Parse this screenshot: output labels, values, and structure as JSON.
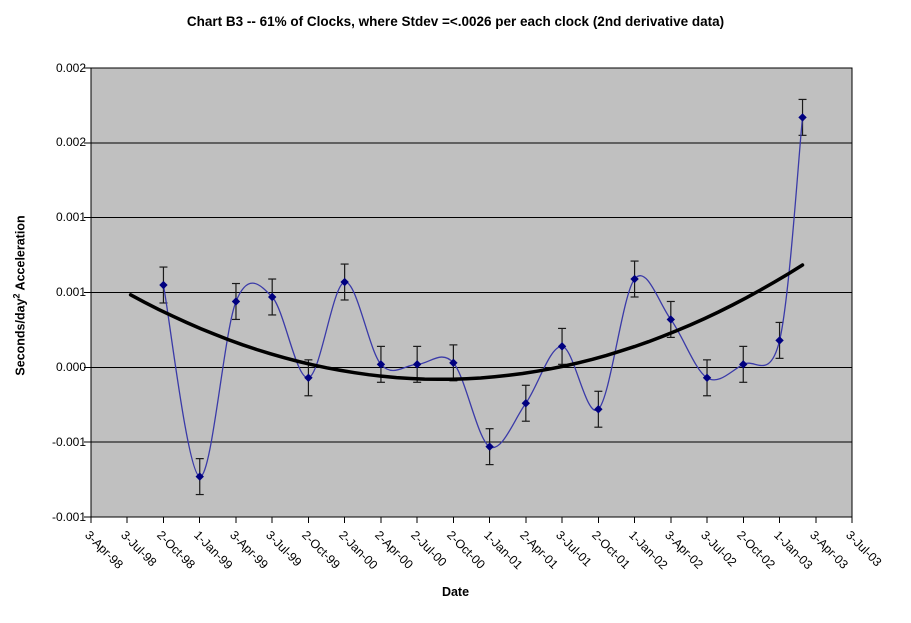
{
  "chart_data": {
    "type": "line",
    "title": "Chart B3 -- 61% of Clocks, where Stdev =<.0026 per each clock (2nd derivative data)",
    "xlabel": "Date",
    "ylabel": "Seconds/day2 Acceleration",
    "ylabel_parts": {
      "main": "Seconds/day",
      "sup": "2",
      "rest": " Acceleration"
    },
    "plot_bg_color": "#c0c0c0",
    "grid": true,
    "legend_position": "none",
    "y_axis": {
      "min": -0.001,
      "max": 0.002,
      "tick_labels": [
        "0.002",
        "0.002",
        "0.001",
        "0.001",
        "0.000",
        "-0.001",
        "-0.001"
      ],
      "tick_values": [
        0.002,
        0.0015,
        0.001,
        0.0005,
        0.0,
        -0.0005,
        -0.001
      ]
    },
    "x_axis": {
      "tick_labels": [
        "3-Apr-98",
        "3-Jul-98",
        "2-Oct-98",
        "1-Jan-99",
        "3-Apr-99",
        "3-Jul-99",
        "2-Oct-99",
        "2-Jan-00",
        "2-Apr-00",
        "2-Jul-00",
        "2-Oct-00",
        "1-Jan-01",
        "2-Apr-01",
        "3-Jul-01",
        "2-Oct-01",
        "1-Jan-02",
        "3-Apr-02",
        "3-Jul-02",
        "2-Oct-02",
        "1-Jan-03",
        "3-Apr-03",
        "3-Jul-03"
      ],
      "label_rotation_deg": 45
    },
    "series": [
      {
        "name": "2nd derivative data",
        "style": "smoothed-line",
        "line_color": "#3a3aa8",
        "marker": "diamond",
        "marker_color": "#000080",
        "error_bar_color": "#1a1a1a",
        "points": [
          {
            "date": "2-Oct-98",
            "x_frac": 0.0952,
            "y": 0.00055,
            "err": 0.00012
          },
          {
            "date": "1-Jan-99",
            "x_frac": 0.1429,
            "y": -0.00073,
            "err": 0.00012
          },
          {
            "date": "3-Apr-99",
            "x_frac": 0.1905,
            "y": 0.00044,
            "err": 0.00012
          },
          {
            "date": "3-Jul-99",
            "x_frac": 0.2381,
            "y": 0.00047,
            "err": 0.00012
          },
          {
            "date": "2-Oct-99",
            "x_frac": 0.2857,
            "y": -7e-05,
            "err": 0.00012
          },
          {
            "date": "2-Jan-00",
            "x_frac": 0.3333,
            "y": 0.00057,
            "err": 0.00012
          },
          {
            "date": "2-Apr-00",
            "x_frac": 0.381,
            "y": 2e-05,
            "err": 0.00012
          },
          {
            "date": "2-Jul-00",
            "x_frac": 0.4286,
            "y": 2e-05,
            "err": 0.00012
          },
          {
            "date": "2-Oct-00",
            "x_frac": 0.4762,
            "y": 3e-05,
            "err": 0.00012
          },
          {
            "date": "1-Jan-01",
            "x_frac": 0.5238,
            "y": -0.00053,
            "err": 0.00012
          },
          {
            "date": "2-Apr-01",
            "x_frac": 0.5714,
            "y": -0.00024,
            "err": 0.00012
          },
          {
            "date": "3-Jul-01",
            "x_frac": 0.619,
            "y": 0.00014,
            "err": 0.00012
          },
          {
            "date": "2-Oct-01",
            "x_frac": 0.6667,
            "y": -0.00028,
            "err": 0.00012
          },
          {
            "date": "1-Jan-02",
            "x_frac": 0.7143,
            "y": 0.00059,
            "err": 0.00012
          },
          {
            "date": "3-Apr-02",
            "x_frac": 0.7619,
            "y": 0.00032,
            "err": 0.00012
          },
          {
            "date": "3-Jul-02",
            "x_frac": 0.8095,
            "y": -7e-05,
            "err": 0.00012
          },
          {
            "date": "2-Oct-02",
            "x_frac": 0.8571,
            "y": 2e-05,
            "err": 0.00012
          },
          {
            "date": "1-Jan-03",
            "x_frac": 0.9048,
            "y": 0.00018,
            "err": 0.00012
          },
          {
            "date": "",
            "x_frac": 0.935,
            "y": 0.00167,
            "err": 0.00012
          }
        ]
      }
    ],
    "trendline": {
      "type": "polynomial-order2",
      "color": "#000000",
      "width": 3.5,
      "a": 0.003388,
      "h": 0.4602,
      "k": -8e-05,
      "x_frac_start": 0.052,
      "x_frac_end": 0.935
    }
  }
}
